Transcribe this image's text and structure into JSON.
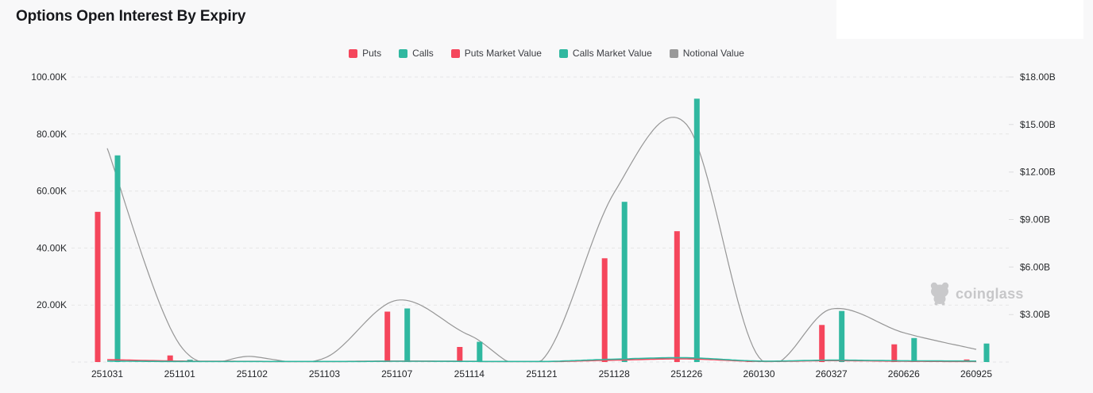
{
  "header": {
    "title": "Options Open Interest By Expiry"
  },
  "legend": {
    "items": [
      {
        "label": "Puts",
        "color": "#f5465c"
      },
      {
        "label": "Calls",
        "color": "#30b8a0"
      },
      {
        "label": "Puts Market Value",
        "color": "#f5465c"
      },
      {
        "label": "Calls Market Value",
        "color": "#30b8a0"
      },
      {
        "label": "Notional Value",
        "color": "#999999"
      }
    ]
  },
  "watermark": {
    "text": "coinglass"
  },
  "colors": {
    "background": "#f8f8f9",
    "panel": "#ffffff",
    "grid": "#e5e5e6",
    "axis_text": "#26282b",
    "puts": "#f5465c",
    "calls": "#30b8a0",
    "notional": "#969696"
  },
  "chart_data": {
    "type": "bar",
    "title": "Options Open Interest By Expiry",
    "grid": true,
    "legend_position": "top",
    "xlabel": "",
    "ylabel": "",
    "categories": [
      "251031",
      "251101",
      "251102",
      "251103",
      "251107",
      "251114",
      "251121",
      "251128",
      "251226",
      "260130",
      "260327",
      "260626",
      "260925"
    ],
    "series": [
      {
        "name": "Puts",
        "type": "bar",
        "axis": "left",
        "unit": "contracts",
        "color": "#f5465c",
        "values": [
          52700,
          2300,
          200,
          200,
          17700,
          5300,
          150,
          36400,
          45900,
          300,
          13000,
          6200,
          900
        ]
      },
      {
        "name": "Calls",
        "type": "bar",
        "axis": "left",
        "unit": "contracts",
        "color": "#30b8a0",
        "values": [
          72500,
          800,
          300,
          300,
          18800,
          7100,
          250,
          56200,
          92400,
          400,
          17900,
          8400,
          6500
        ]
      },
      {
        "name": "Puts Market Value",
        "type": "line",
        "axis": "right",
        "unit": "USD_billions",
        "color": "#f5465c",
        "values": [
          0.15,
          0.06,
          0.04,
          0.03,
          0.06,
          0.04,
          0.02,
          0.12,
          0.2,
          0.04,
          0.09,
          0.05,
          0.03
        ]
      },
      {
        "name": "Calls Market Value",
        "type": "line",
        "axis": "right",
        "unit": "USD_billions",
        "color": "#30b8a0",
        "values": [
          0.06,
          0.03,
          0.02,
          0.02,
          0.05,
          0.04,
          0.03,
          0.18,
          0.27,
          0.06,
          0.12,
          0.08,
          0.06
        ]
      },
      {
        "name": "Notional Value",
        "type": "line",
        "axis": "right",
        "unit": "USD_billions",
        "color": "#969696",
        "values": [
          13.5,
          1.1,
          0.35,
          0.25,
          3.9,
          1.7,
          0.1,
          10.7,
          15.0,
          0.3,
          3.35,
          1.85,
          0.8
        ]
      }
    ],
    "left_axis": {
      "min": 0,
      "max": 100000,
      "tick_values": [
        20000,
        40000,
        60000,
        80000,
        100000
      ],
      "tick_labels": [
        "20.00K",
        "40.00K",
        "60.00K",
        "80.00K",
        "100.00K"
      ]
    },
    "right_axis": {
      "min": 0,
      "max": 18,
      "tick_values": [
        3,
        6,
        9,
        12,
        15,
        18
      ],
      "tick_labels": [
        "$3.00B",
        "$6.00B",
        "$9.00B",
        "$12.00B",
        "$15.00B",
        "$18.00B"
      ]
    }
  }
}
